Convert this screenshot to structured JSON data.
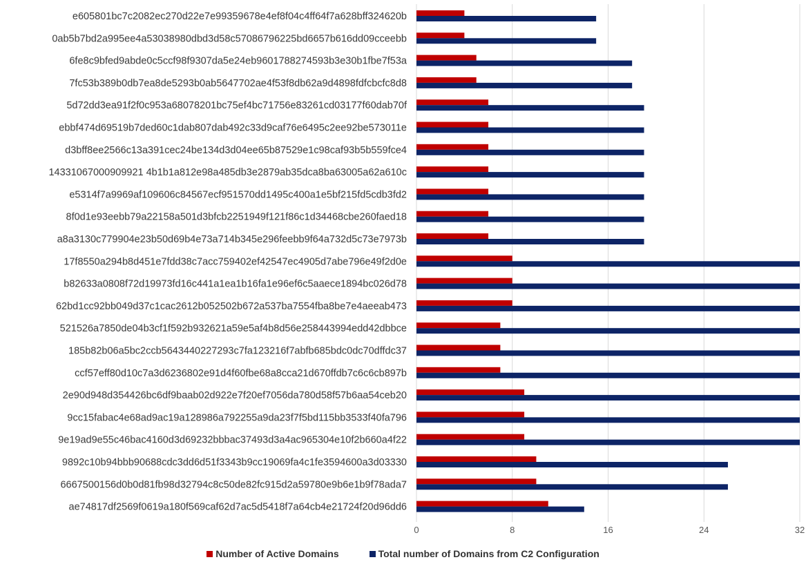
{
  "chart_data": {
    "type": "bar",
    "orientation": "horizontal",
    "categories": [
      "e605801bc7c2082ec270d22e7e99359678e4ef8f04c4ff64f7a628bff324620b",
      "0ab5b7bd2a995ee4a53038980dbd3d58c57086796225bd6657b616dd09cceebb",
      "6fe8c9bfed9abde0c5ccf98f9307da5e24eb9601788274593b3e30b1fbe7f53a",
      "7fc53b389b0db7ea8de5293b0ab5647702ae4f53f8db62a9d4898fdfcbcfc8d8",
      "5d72dd3ea91f2f0c953a68078201bc75ef4bc71756e83261cd03177f60dab70f",
      "ebbf474d69519b7ded60c1dab807dab492c33d9caf76e6495c2ee92be573011e",
      "d3bff8ee2566c13a391cec24be134d3d04ee65b87529e1c98caf93b5b559fce4",
      "14331067000909921 4b1b1a812e98a485db3e2879ab35dca8ba63005a62a610c",
      "e5314f7a9969af109606c84567ecf951570dd1495c400a1e5bf215fd5cdb3fd2",
      "8f0d1e93eebb79a22158a501d3bfcb2251949f121f86c1d34468cbe260faed18",
      "a8a3130c779904e23b50d69b4e73a714b345e296feebb9f64a732d5c73e7973b",
      "17f8550a294b8d451e7fdd38c7acc759402ef42547ec4905d7abe796e49f2d0e",
      "b82633a0808f72d19973fd16c441a1ea1b16fa1e96ef6c5aaece1894bc026d78",
      "62bd1cc92bb049d37c1cac2612b052502b672a537ba7554fba8be7e4aeeab473",
      "521526a7850de04b3cf1f592b932621a59e5af4b8d56e258443994edd42dbbce",
      "185b82b06a5bc2ccb5643440227293c7fa123216f7abfb685bdc0dc70dffdc37",
      "ccf57eff80d10c7a3d6236802e91d4f60fbe68a8cca21d670ffdb7c6c6cb897b",
      "2e90d948d354426bc6df9baab02d922e7f20ef7056da780d58f57b6aa54ceb20",
      "9cc15fabac4e68ad9ac19a128986a792255a9da23f7f5bd115bb3533f40fa796",
      "9e19ad9e55c46bac4160d3d69232bbbac37493d3a4ac965304e10f2b660a4f22",
      "9892c10b94bbb90688cdc3dd6d51f3343b9cc19069fa4c1fe3594600a3d03330",
      "6667500156d0b0d81fb98d32794c8c50de82fc915d2a59780e9b6e1b9f78ada7",
      "ae74817df2569f0619a180f569caf62d7ac5d5418f7a64cb4e21724f20d96dd6"
    ],
    "series": [
      {
        "name": "Number of Active Domains",
        "color": "#c00000",
        "values": [
          4,
          4,
          5,
          5,
          6,
          6,
          6,
          6,
          6,
          6,
          6,
          8,
          8,
          8,
          7,
          7,
          7,
          9,
          9,
          9,
          10,
          10,
          11
        ]
      },
      {
        "name": "Total number of Domains from C2 Configuration",
        "color": "#0d2466",
        "values": [
          15,
          15,
          18,
          18,
          19,
          19,
          19,
          19,
          19,
          19,
          19,
          32,
          32,
          32,
          32,
          32,
          32,
          32,
          32,
          32,
          26,
          26,
          14
        ]
      }
    ],
    "xlim": [
      0,
      32
    ],
    "xticks": [
      "0",
      "8",
      "16",
      "24",
      "32"
    ],
    "grid": true,
    "legend_position": "bottom",
    "title": "",
    "xlabel": "",
    "ylabel": ""
  }
}
